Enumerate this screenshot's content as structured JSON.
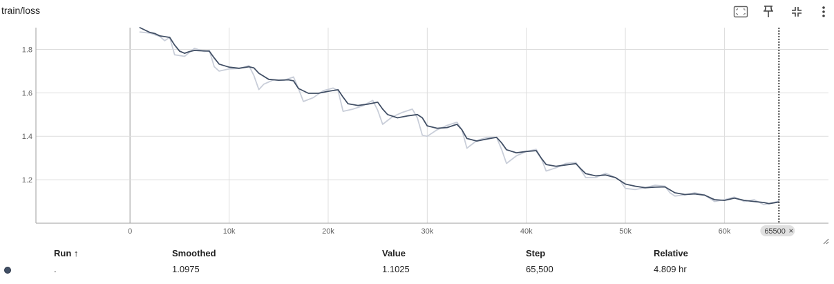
{
  "card": {
    "title": "train/loss"
  },
  "toolbar": {
    "icons": [
      "fit-domain-icon",
      "pin-icon",
      "collapse-icon",
      "more-vert-icon"
    ]
  },
  "colors": {
    "smoothed_line": "#425066",
    "raw_line": "#c9ced9",
    "grid": "#dddddd",
    "axis": "#9e9e9e",
    "cursor_line": "#424242",
    "chip_bg": "#e0e0e0"
  },
  "chart_data": {
    "type": "line",
    "title": "train/loss",
    "xlabel": "",
    "ylabel": "",
    "xlim": [
      -9500,
      70500
    ],
    "ylim": [
      1.0,
      1.9
    ],
    "x_ticks": [
      0,
      10000,
      20000,
      30000,
      40000,
      50000,
      60000
    ],
    "x_tick_labels": [
      "0",
      "10k",
      "20k",
      "30k",
      "40k",
      "50k",
      "60k"
    ],
    "y_ticks": [
      1.2,
      1.4,
      1.6,
      1.8
    ],
    "y_tick_labels": [
      "1.2",
      "1.4",
      "1.6",
      "1.8"
    ],
    "grid": true,
    "cursor_step": 65500,
    "cursor_label": "65500",
    "cursor_close_glyph": "×",
    "series": [
      {
        "role": "smoothed",
        "x": [
          1000,
          2000,
          2500,
          3000,
          4000,
          4500,
          5000,
          5500,
          6000,
          6500,
          7000,
          8000,
          8500,
          9000,
          10000,
          11000,
          12000,
          12500,
          13000,
          14000,
          15000,
          16000,
          16500,
          17000,
          18000,
          19000,
          20000,
          21000,
          21500,
          22000,
          23000,
          24000,
          25000,
          25500,
          26000,
          27000,
          28000,
          29000,
          29500,
          30000,
          31000,
          32000,
          33000,
          33500,
          34000,
          35000,
          36000,
          37000,
          37500,
          38000,
          39000,
          40000,
          41000,
          41500,
          42000,
          43000,
          44000,
          45000,
          45500,
          46000,
          47000,
          48000,
          49000,
          50000,
          51000,
          52000,
          53000,
          54000,
          55000,
          56000,
          57000,
          58000,
          59000,
          60000,
          61000,
          62000,
          63000,
          64000,
          64500,
          65500
        ],
        "y": [
          1.9,
          1.878,
          1.873,
          1.862,
          1.855,
          1.82,
          1.792,
          1.782,
          1.79,
          1.795,
          1.794,
          1.792,
          1.76,
          1.732,
          1.718,
          1.713,
          1.72,
          1.715,
          1.69,
          1.662,
          1.658,
          1.66,
          1.655,
          1.62,
          1.598,
          1.598,
          1.607,
          1.614,
          1.58,
          1.55,
          1.542,
          1.548,
          1.557,
          1.525,
          1.5,
          1.485,
          1.494,
          1.5,
          1.485,
          1.448,
          1.437,
          1.44,
          1.455,
          1.43,
          1.39,
          1.378,
          1.387,
          1.395,
          1.37,
          1.338,
          1.324,
          1.33,
          1.334,
          1.3,
          1.27,
          1.262,
          1.268,
          1.274,
          1.25,
          1.228,
          1.218,
          1.222,
          1.21,
          1.18,
          1.17,
          1.163,
          1.166,
          1.167,
          1.14,
          1.132,
          1.135,
          1.129,
          1.108,
          1.105,
          1.115,
          1.105,
          1.1,
          1.095,
          1.09,
          1.0975
        ]
      },
      {
        "role": "raw",
        "x": [
          1000,
          2000,
          3000,
          3500,
          4000,
          4500,
          5500,
          6500,
          7500,
          8000,
          8500,
          9000,
          10000,
          11000,
          12000,
          12500,
          13000,
          13500,
          14500,
          15500,
          16500,
          17000,
          17500,
          18500,
          19500,
          20500,
          21000,
          21500,
          22500,
          23500,
          24500,
          25000,
          25500,
          26500,
          27500,
          28500,
          29000,
          29500,
          30000,
          31000,
          32000,
          33000,
          33500,
          34000,
          35000,
          36000,
          37000,
          37500,
          38000,
          39000,
          40000,
          41000,
          41500,
          42000,
          43000,
          44000,
          45000,
          45500,
          46000,
          47000,
          48000,
          49000,
          49500,
          50000,
          51000,
          52000,
          53000,
          54000,
          54500,
          55000,
          56000,
          57000,
          58000,
          59000,
          60000,
          61000,
          62000,
          63000,
          64000,
          65000,
          65500
        ],
        "y": [
          1.88,
          1.875,
          1.86,
          1.84,
          1.855,
          1.775,
          1.768,
          1.805,
          1.79,
          1.795,
          1.72,
          1.7,
          1.71,
          1.712,
          1.725,
          1.68,
          1.615,
          1.64,
          1.66,
          1.657,
          1.673,
          1.62,
          1.56,
          1.578,
          1.61,
          1.622,
          1.61,
          1.515,
          1.525,
          1.54,
          1.565,
          1.52,
          1.455,
          1.49,
          1.51,
          1.525,
          1.485,
          1.405,
          1.4,
          1.43,
          1.45,
          1.465,
          1.43,
          1.345,
          1.38,
          1.395,
          1.395,
          1.34,
          1.275,
          1.31,
          1.33,
          1.34,
          1.3,
          1.24,
          1.255,
          1.275,
          1.28,
          1.245,
          1.21,
          1.21,
          1.23,
          1.21,
          1.195,
          1.16,
          1.155,
          1.163,
          1.175,
          1.17,
          1.14,
          1.125,
          1.13,
          1.14,
          1.13,
          1.1,
          1.108,
          1.12,
          1.1,
          1.108,
          1.085,
          1.095,
          1.1025
        ]
      }
    ]
  },
  "table": {
    "headers": {
      "run": "Run",
      "run_sort_glyph": "↑",
      "smoothed": "Smoothed",
      "value": "Value",
      "step": "Step",
      "relative": "Relative"
    },
    "row": {
      "run": ".",
      "smoothed": "1.0975",
      "value": "1.1025",
      "step": "65,500",
      "relative": "4.809 hr"
    }
  }
}
